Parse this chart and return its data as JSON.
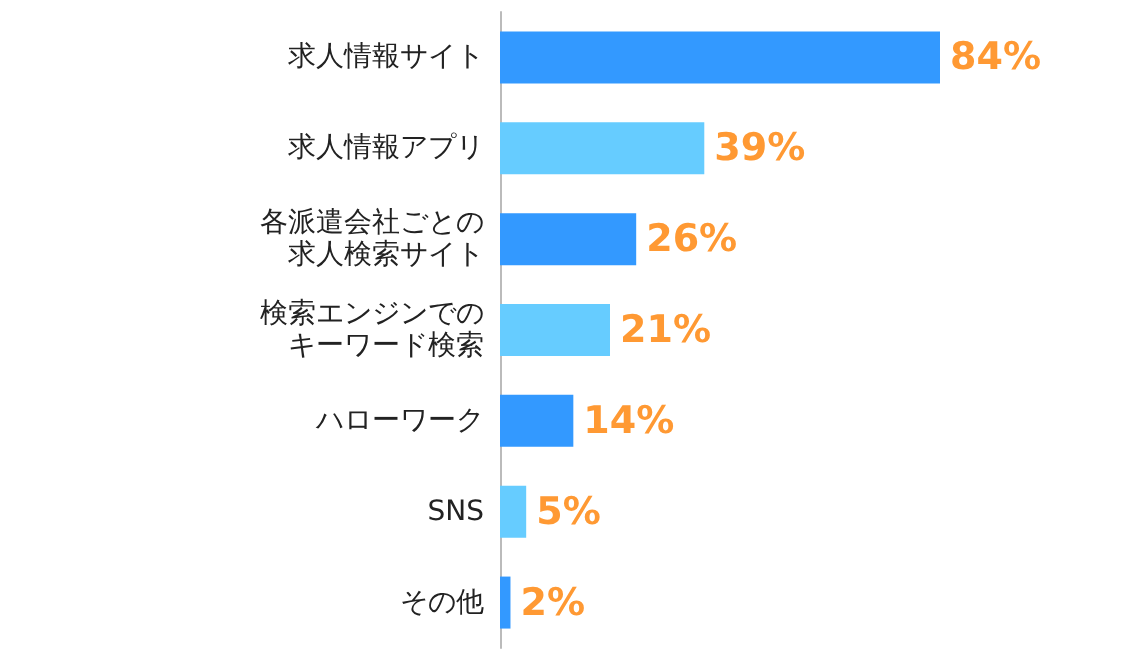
{
  "chart_data": {
    "type": "bar",
    "orientation": "horizontal",
    "categories": [
      "求人情報サイト",
      "求人情報アプリ",
      "各派遣会社ごとの求人検索サイト",
      "検索エンジンでのキーワード検索",
      "ハローワーク",
      "SNS",
      "その他"
    ],
    "values": [
      84,
      39,
      26,
      21,
      14,
      5,
      2
    ],
    "colors": [
      "#3399ff",
      "#66ccff",
      "#3399ff",
      "#66ccff",
      "#3399ff",
      "#66ccff",
      "#3399ff"
    ],
    "value_labels": [
      "84%",
      "39%",
      "26%",
      "21%",
      "14%",
      "5%",
      "2%"
    ],
    "tick_labels": "y"
  }
}
